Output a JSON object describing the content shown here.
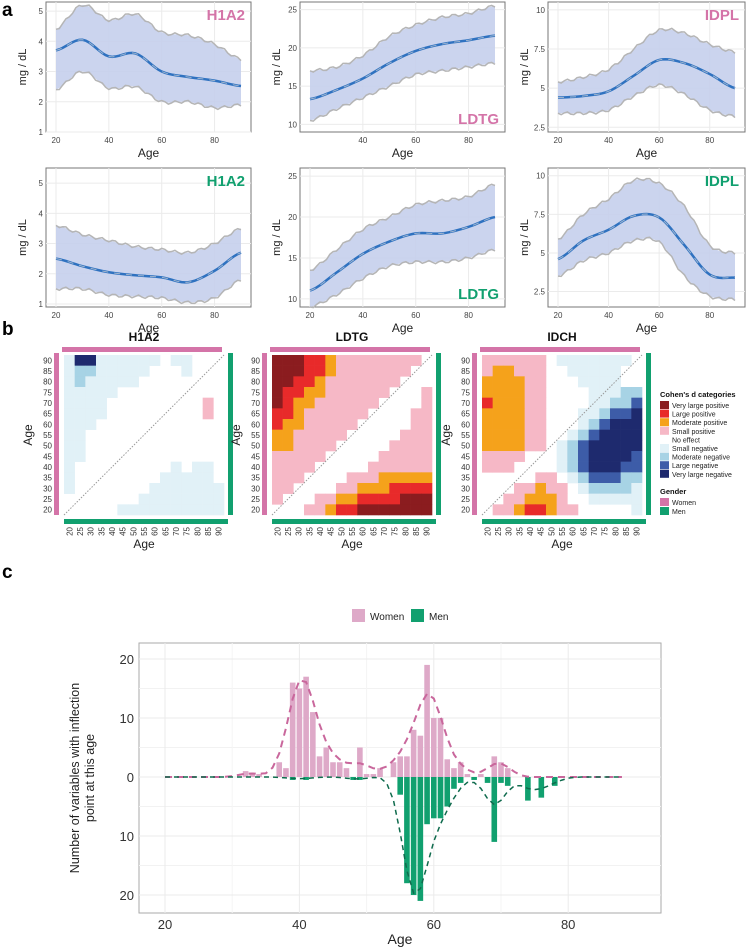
{
  "panel_labels": {
    "a": "a",
    "b": "b",
    "c": "c"
  },
  "colors": {
    "women": "#d474a8",
    "men": "#11a06f",
    "ribbon": "#c5cfec",
    "mean_line": "#2f72c0",
    "bounds": "#b5b5b5"
  },
  "chart_data": [
    {
      "type": "line",
      "panel": "a",
      "gender": "Women",
      "title": "H1A2",
      "xlabel": "Age",
      "ylabel": "mg / dL",
      "xlim": [
        20,
        90
      ],
      "ylim": [
        1,
        5.3
      ],
      "xticks": [
        20,
        40,
        60,
        80
      ],
      "yticks": [
        1,
        2,
        3,
        4,
        5
      ],
      "x": [
        20,
        30,
        40,
        50,
        60,
        70,
        80,
        90
      ],
      "mean": [
        3.7,
        4.05,
        3.5,
        3.6,
        3.0,
        2.82,
        2.7,
        2.52
      ],
      "lower": [
        2.4,
        3.0,
        2.45,
        2.5,
        2.0,
        2.0,
        1.8,
        1.9
      ],
      "upper": [
        4.4,
        5.2,
        4.7,
        4.9,
        4.3,
        4.2,
        3.9,
        3.4
      ]
    },
    {
      "type": "line",
      "panel": "a",
      "gender": "Women",
      "title": "LDTG",
      "xlabel": "Age",
      "ylabel": "mg / dL",
      "xlim": [
        20,
        90
      ],
      "ylim": [
        9,
        26
      ],
      "xticks": [
        40,
        60,
        80
      ],
      "yticks": [
        10,
        15,
        20,
        25
      ],
      "x": [
        20,
        30,
        40,
        50,
        60,
        70,
        80,
        90
      ],
      "mean": [
        13.3,
        14.5,
        16.0,
        18.0,
        19.6,
        20.5,
        21.0,
        21.6
      ],
      "lower": [
        10.5,
        12.0,
        13.5,
        15.0,
        16.5,
        17.0,
        17.5,
        18.0
      ],
      "upper": [
        17.0,
        17.5,
        19.0,
        21.5,
        23.0,
        24.0,
        24.5,
        25.5
      ]
    },
    {
      "type": "line",
      "panel": "a",
      "gender": "Women",
      "title": "IDPL",
      "xlabel": "Age",
      "ylabel": "mg / dL",
      "xlim": [
        20,
        90
      ],
      "ylim": [
        2.2,
        10.5
      ],
      "xticks": [
        20,
        40,
        60,
        80
      ],
      "yticks": [
        2.5,
        5.0,
        7.5,
        10.0
      ],
      "x": [
        20,
        30,
        40,
        50,
        60,
        70,
        80,
        90
      ],
      "mean": [
        4.4,
        4.5,
        4.8,
        5.8,
        6.8,
        6.6,
        5.9,
        5.0
      ],
      "lower": [
        3.4,
        3.4,
        3.6,
        4.5,
        5.2,
        4.6,
        3.6,
        3.2
      ],
      "upper": [
        5.4,
        5.7,
        6.2,
        7.5,
        8.7,
        8.5,
        7.8,
        7.3
      ]
    },
    {
      "type": "line",
      "panel": "a",
      "gender": "Men",
      "title": "H1A2",
      "xlabel": "Age",
      "ylabel": "mg / dL",
      "xlim": [
        20,
        90
      ],
      "ylim": [
        0.9,
        5.5
      ],
      "xticks": [
        20,
        40,
        60,
        80
      ],
      "yticks": [
        1,
        2,
        3,
        4,
        5
      ],
      "x": [
        20,
        30,
        40,
        50,
        60,
        70,
        80,
        90
      ],
      "mean": [
        2.5,
        2.25,
        2.05,
        1.95,
        1.88,
        1.72,
        2.1,
        2.7
      ],
      "lower": [
        1.5,
        1.5,
        1.3,
        1.25,
        1.2,
        1.05,
        1.2,
        1.8
      ],
      "upper": [
        3.6,
        3.3,
        3.1,
        2.9,
        2.8,
        2.7,
        3.0,
        3.5
      ]
    },
    {
      "type": "line",
      "panel": "a",
      "gender": "Men",
      "title": "LDTG",
      "xlabel": "Age",
      "ylabel": "mg / dL",
      "xlim": [
        20,
        90
      ],
      "ylim": [
        9,
        26
      ],
      "xticks": [
        20,
        40,
        60,
        80
      ],
      "yticks": [
        10,
        15,
        20,
        25
      ],
      "x": [
        20,
        30,
        40,
        50,
        60,
        70,
        80,
        90
      ],
      "mean": [
        11.0,
        13.2,
        15.5,
        17.0,
        18.0,
        18.0,
        18.8,
        20.0
      ],
      "lower": [
        9.0,
        10.5,
        12.5,
        14.0,
        14.5,
        14.5,
        15.0,
        16.0
      ],
      "upper": [
        13.5,
        16.0,
        18.5,
        20.0,
        21.5,
        22.0,
        22.5,
        24.0
      ]
    },
    {
      "type": "line",
      "panel": "a",
      "gender": "Men",
      "title": "IDPL",
      "xlabel": "Age",
      "ylabel": "mg / dL",
      "xlim": [
        20,
        90
      ],
      "ylim": [
        1.5,
        10.5
      ],
      "xticks": [
        20,
        40,
        60,
        80
      ],
      "yticks": [
        2.5,
        5.0,
        7.5,
        10.0
      ],
      "x": [
        20,
        30,
        40,
        50,
        60,
        70,
        80,
        90
      ],
      "mean": [
        4.6,
        5.8,
        6.5,
        7.4,
        7.3,
        5.5,
        3.6,
        3.4
      ],
      "lower": [
        3.5,
        4.5,
        5.0,
        5.8,
        5.7,
        3.5,
        2.2,
        2.0
      ],
      "upper": [
        5.9,
        7.5,
        8.5,
        9.7,
        9.5,
        8.0,
        5.5,
        5.0
      ]
    },
    {
      "type": "heatmap",
      "panel": "b",
      "title": "H1A2",
      "xlabel": "Age",
      "ylabel": "Age",
      "ticks": [
        20,
        25,
        30,
        35,
        40,
        45,
        50,
        55,
        60,
        65,
        70,
        75,
        80,
        85,
        90
      ],
      "rows_top_to_bottom": [
        "588555555055000",
        "566555550005000",
        "565555500000000",
        "555550000000000",
        "555500000000010",
        "555500000000010",
        "555000000000000",
        "550000000000000",
        "550000000000000",
        "550000000000000",
        "500000000050550",
        "500000000555550",
        "500000005555555",
        "000000055555555",
        "000005555555555"
      ]
    },
    {
      "type": "heatmap",
      "panel": "b",
      "title": "LDTG",
      "xlabel": "Age",
      "ylabel": "Age",
      "ticks": [
        20,
        25,
        30,
        35,
        40,
        45,
        50,
        55,
        60,
        65,
        70,
        75,
        80,
        85,
        90
      ],
      "rows_top_to_bottom": [
        "444332111111110",
        "444332111111100",
        "443321111111000",
        "433221111110001",
        "432211111100001",
        "332111111000011",
        "322111110000011",
        "221111100000111",
        "221111000001111",
        "111110000011111",
        "111100000111111",
        "111000011122222",
        "110000112223333",
        "100011223333444",
        "000112334444444"
      ]
    },
    {
      "type": "heatmap",
      "panel": "b",
      "title": "IDCH",
      "xlabel": "Age",
      "ylabel": "Age",
      "ticks": [
        20,
        25,
        30,
        35,
        40,
        45,
        50,
        55,
        60,
        65,
        70,
        75,
        80,
        85,
        90
      ],
      "rows_top_to_bottom": [
        "111111055555550",
        "122111005555500",
        "222211000555500",
        "222211000055566",
        "322211000055667",
        "222211000556778",
        "222211000567888",
        "222211005678888",
        "222211056788888",
        "111100056788887",
        "111000056788877",
        "000001105677766",
        "000112110566665",
        "001122210055555",
        "011233211000005"
      ]
    },
    {
      "type": "bar",
      "panel": "c",
      "xlabel": "Age",
      "ylabel": "Number of variables with inflection point at this age",
      "xlim": [
        20,
        90
      ],
      "ylim": [
        -22,
        22
      ],
      "xticks": [
        20,
        40,
        60,
        80
      ],
      "ytick_values": [
        20,
        10,
        0,
        -10,
        -20
      ],
      "ytick_labels": [
        "20",
        "10",
        "0",
        "10",
        "20"
      ],
      "legend_position": "top",
      "x_start": 20,
      "series": [
        {
          "name": "Women",
          "values": [
            0,
            0,
            0,
            0,
            0,
            0,
            0,
            0,
            0,
            0,
            0,
            0,
            1,
            0.5,
            0.5,
            0,
            0,
            2.5,
            1.5,
            16,
            15,
            17,
            11,
            3.5,
            5,
            2.5,
            2.5,
            1.5,
            0,
            5,
            0.5,
            0.5,
            1.5,
            0,
            2.5,
            3.5,
            3.5,
            8,
            7,
            19,
            10,
            10,
            3,
            1.5,
            2.5,
            0.5,
            0,
            0.5,
            0,
            3.5,
            2.5,
            1.5,
            0,
            0,
            0,
            0,
            0,
            0,
            0,
            0,
            0,
            0,
            0,
            0,
            0,
            0,
            0,
            0,
            0
          ]
        },
        {
          "name": "Men",
          "values": [
            0,
            0,
            0,
            0,
            0,
            0,
            0,
            0,
            0,
            0,
            0,
            0,
            0,
            0,
            0,
            0,
            0,
            0,
            0,
            0.5,
            0,
            0.5,
            0,
            0,
            0,
            0,
            0,
            0,
            0.5,
            0.5,
            0,
            0,
            0,
            0,
            0,
            3,
            18,
            20,
            21,
            8,
            7,
            7,
            5,
            2,
            1,
            0,
            0.5,
            0,
            1,
            11,
            1,
            1.5,
            0,
            0,
            4,
            0,
            3.5,
            0,
            1.5,
            0,
            0,
            0,
            0,
            0,
            0,
            0,
            0,
            0,
            0
          ]
        }
      ]
    }
  ],
  "heatmap_legend": {
    "title": "Cohen's d categories",
    "categories": [
      {
        "code": 4,
        "label": "Very large positive",
        "color": "#8b1c1f"
      },
      {
        "code": 3,
        "label": "Large positive",
        "color": "#e82a2a"
      },
      {
        "code": 2,
        "label": "Moderate positive",
        "color": "#f5a21b"
      },
      {
        "code": 1,
        "label": "Small positive",
        "color": "#f6b8c6"
      },
      {
        "code": 0,
        "label": "No effect",
        "color": "#ffffff"
      },
      {
        "code": 5,
        "label": "Small negative",
        "color": "#e1f1f7"
      },
      {
        "code": 6,
        "label": "Moderate negative",
        "color": "#a7d3e5"
      },
      {
        "code": 7,
        "label": "Large negative",
        "color": "#3d5ca8"
      },
      {
        "code": 8,
        "label": "Very large negative",
        "color": "#1e2a6e"
      }
    ],
    "gender_title": "Gender",
    "genders": [
      {
        "label": "Women",
        "color": "#d474a8"
      },
      {
        "label": "Men",
        "color": "#11a06f"
      }
    ]
  }
}
